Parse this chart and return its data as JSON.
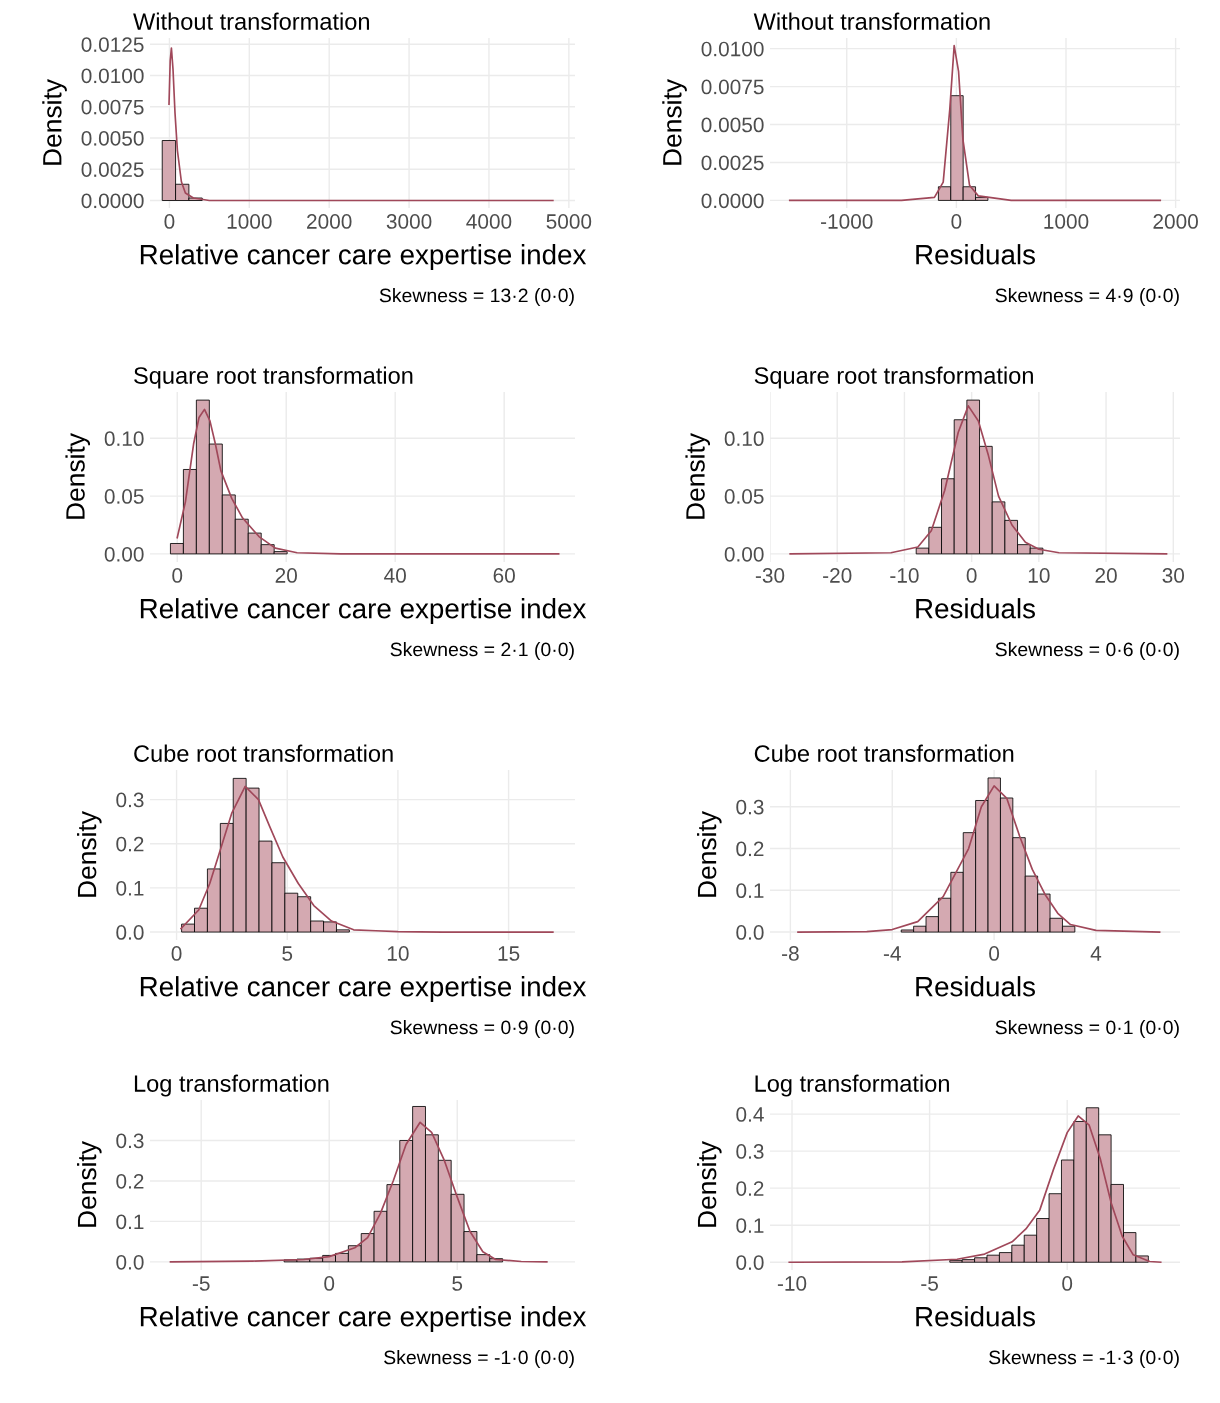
{
  "chart_data": [
    {
      "type": "histogram",
      "title": "Without transformation",
      "xlabel": "Relative cancer care expertise index",
      "ylabel": "Density",
      "annotations": [
        "Skewness = 13·2 (0·0)"
      ],
      "grid": true,
      "xlim": [
        -243,
        5077
      ],
      "xticks": [
        0,
        1000,
        2000,
        3000,
        4000,
        5000
      ],
      "ylim": [
        -0.0006,
        0.013
      ],
      "yticks": [
        {
          "value": 0,
          "label": "0.0000"
        },
        {
          "value": 0.0025,
          "label": "0.0025"
        },
        {
          "value": 0.005,
          "label": "0.0050"
        },
        {
          "value": 0.0075,
          "label": "0.0075"
        },
        {
          "value": 0.01,
          "label": "0.0100"
        },
        {
          "value": 0.0125,
          "label": "0.0125"
        }
      ],
      "series": [
        {
          "color": "#d4a9b1",
          "bins": [
            -90,
            77,
            244,
            411,
            578,
            745,
            912,
            1079,
            1246,
            1413,
            1580,
            1747,
            1914,
            2081,
            2248,
            2415,
            2582,
            2749,
            2916,
            3083,
            3250,
            3417,
            3584,
            3751,
            3918,
            4085,
            4252,
            4419,
            4586,
            4753,
            4920
          ],
          "values": [
            0.0048,
            0.0013,
            0.0002,
            0,
            0,
            0,
            0,
            0,
            0,
            0,
            0,
            0,
            0,
            0,
            0,
            0,
            0,
            0,
            0,
            0,
            0,
            0,
            0,
            0,
            0,
            0,
            0,
            0,
            0,
            0
          ]
        },
        {
          "type": "line",
          "color": "#a0485a",
          "x": [
            -5,
            10,
            25,
            45,
            70,
            100,
            150,
            200,
            300,
            500,
            1000,
            2000,
            3000,
            4000,
            4800
          ],
          "values": [
            0.0077,
            0.0112,
            0.0122,
            0.0105,
            0.007,
            0.004,
            0.0015,
            0.0006,
            0.0002,
            0,
            0,
            0,
            0,
            0,
            0
          ]
        }
      ]
    },
    {
      "type": "histogram",
      "title": "Without transformation",
      "xlabel": "Residuals",
      "ylabel": "Density",
      "annotations": [
        "Skewness = 4·9 (0·0)"
      ],
      "grid": true,
      "xlim": [
        -1700,
        2040
      ],
      "xticks": [
        -1000,
        0,
        1000,
        2000
      ],
      "ylim": [
        -0.0005,
        0.0107
      ],
      "yticks": [
        {
          "value": 0,
          "label": "0.0000"
        },
        {
          "value": 0.0025,
          "label": "0.0025"
        },
        {
          "value": 0.005,
          "label": "0.0050"
        },
        {
          "value": 0.0075,
          "label": "0.0075"
        },
        {
          "value": 0.01,
          "label": "0.0100"
        }
      ],
      "series": [
        {
          "color": "#d4a9b1",
          "bins": [
            -1520,
            -1407,
            -1294,
            -1181,
            -1068,
            -955,
            -842,
            -729,
            -616,
            -503,
            -390,
            -277,
            -164,
            -51,
            62,
            175,
            288,
            401,
            514,
            627,
            740,
            853,
            966,
            1079,
            1192,
            1305,
            1418,
            1531,
            1644,
            1757,
            1870
          ],
          "values": [
            0,
            0,
            0,
            0,
            0,
            0,
            0,
            0,
            0,
            0,
            0,
            0,
            0.0009,
            0.0069,
            0.0009,
            0.0002,
            0,
            0,
            0,
            0,
            0,
            0,
            0,
            0,
            0,
            0,
            0,
            0,
            0,
            0
          ]
        },
        {
          "type": "line",
          "color": "#a0485a",
          "x": [
            -1520,
            -500,
            -200,
            -120,
            -60,
            -20,
            20,
            60,
            120,
            200,
            500,
            1000,
            1860
          ],
          "values": [
            0,
            0,
            0.0002,
            0.0012,
            0.006,
            0.0102,
            0.0085,
            0.004,
            0.001,
            0.0003,
            0,
            0,
            0
          ]
        }
      ]
    },
    {
      "type": "histogram",
      "title": "Square root transformation",
      "xlabel": "Relative cancer care expertise index",
      "ylabel": "Density",
      "annotations": [
        "Skewness = 2·1 (0·0)"
      ],
      "grid": true,
      "xlim": [
        -5,
        73
      ],
      "xticks": [
        0,
        20,
        40,
        60
      ],
      "ylim": [
        -0.007,
        0.14
      ],
      "yticks": [
        {
          "value": 0,
          "label": "0.00"
        },
        {
          "value": 0.05,
          "label": "0.05"
        },
        {
          "value": 0.1,
          "label": "0.10"
        }
      ],
      "series": [
        {
          "color": "#d4a9b1",
          "bins": [
            -1.25,
            1.13,
            3.51,
            5.89,
            8.27,
            10.65,
            13.03,
            15.41,
            17.79,
            20.17,
            22.55,
            24.93,
            27.31,
            29.69,
            32.07,
            34.45,
            36.83,
            39.21,
            41.59,
            43.97,
            46.35,
            48.73,
            51.11,
            53.49,
            55.87,
            58.25,
            60.63,
            63.01,
            65.39,
            67.77,
            70.15
          ],
          "values": [
            0.009,
            0.073,
            0.133,
            0.095,
            0.051,
            0.03,
            0.018,
            0.008,
            0.002,
            0,
            0,
            0,
            0,
            0,
            0,
            0,
            0,
            0,
            0,
            0,
            0,
            0,
            0,
            0,
            0,
            0,
            0,
            0,
            0,
            0
          ]
        },
        {
          "type": "line",
          "color": "#a0485a",
          "x": [
            0,
            1.5,
            3,
            4,
            5,
            6,
            7,
            8,
            10,
            12,
            15,
            18,
            22,
            30,
            45,
            70
          ],
          "values": [
            0.014,
            0.045,
            0.095,
            0.118,
            0.125,
            0.115,
            0.095,
            0.072,
            0.048,
            0.031,
            0.015,
            0.005,
            0.001,
            0,
            0,
            0
          ]
        }
      ]
    },
    {
      "type": "histogram",
      "title": "Square root transformation",
      "xlabel": "Residuals",
      "ylabel": "Density",
      "annotations": [
        "Skewness = 0·6 (0·0)"
      ],
      "grid": true,
      "xlim": [
        -30,
        31
      ],
      "xticks": [
        -30,
        -20,
        -10,
        0,
        10,
        20,
        30
      ],
      "ylim": [
        -0.007,
        0.14
      ],
      "yticks": [
        {
          "value": 0,
          "label": "0.00"
        },
        {
          "value": 0.05,
          "label": "0.05"
        },
        {
          "value": 0.1,
          "label": "0.10"
        }
      ],
      "series": [
        {
          "color": "#d4a9b1",
          "bins": [
            -27.1,
            -25.215,
            -23.33,
            -21.445,
            -19.56,
            -17.675,
            -15.79,
            -13.905,
            -12.02,
            -10.135,
            -8.25,
            -6.365,
            -4.48,
            -2.595,
            -0.71,
            1.175,
            3.06,
            4.945,
            6.83,
            8.715,
            10.6,
            12.485,
            14.37,
            16.255,
            18.14,
            20.025,
            21.91,
            23.795,
            25.68,
            27.565,
            29.45
          ],
          "values": [
            0,
            0,
            0,
            0,
            0,
            0,
            0,
            0,
            0,
            0,
            0.005,
            0.023,
            0.065,
            0.116,
            0.133,
            0.093,
            0.045,
            0.029,
            0.008,
            0.005,
            0,
            0,
            0,
            0,
            0,
            0,
            0,
            0,
            0,
            0
          ]
        },
        {
          "type": "line",
          "color": "#a0485a",
          "x": [
            -27,
            -12,
            -8,
            -6,
            -4,
            -2,
            -0.5,
            1,
            2.5,
            4,
            6,
            8,
            10,
            13,
            29
          ],
          "values": [
            0,
            0.001,
            0.006,
            0.02,
            0.055,
            0.105,
            0.128,
            0.115,
            0.085,
            0.05,
            0.025,
            0.01,
            0.004,
            0.001,
            0
          ]
        }
      ]
    },
    {
      "type": "histogram",
      "title": "Cube root transformation",
      "xlabel": "Relative cancer care expertise index",
      "ylabel": "Density",
      "annotations": [
        "Skewness = 0·9 (0·0)"
      ],
      "grid": true,
      "xlim": [
        -1.2,
        18
      ],
      "xticks": [
        0,
        5,
        10,
        15
      ],
      "ylim": [
        -0.018,
        0.367
      ],
      "yticks": [
        {
          "value": 0,
          "label": "0.0"
        },
        {
          "value": 0.1,
          "label": "0.1"
        },
        {
          "value": 0.2,
          "label": "0.2"
        },
        {
          "value": 0.3,
          "label": "0.3"
        }
      ],
      "series": [
        {
          "color": "#d4a9b1",
          "bins": [
            -0.355,
            0.228,
            0.811,
            1.394,
            1.977,
            2.56,
            3.143,
            3.726,
            4.309,
            4.892,
            5.475,
            6.058,
            6.641,
            7.224,
            7.807,
            8.39,
            8.973,
            9.556,
            10.139,
            10.722,
            11.305,
            11.888,
            12.471,
            13.054,
            13.637,
            14.22,
            14.803,
            15.386,
            15.969,
            16.552,
            17.135
          ],
          "values": [
            0,
            0.018,
            0.054,
            0.143,
            0.246,
            0.348,
            0.326,
            0.206,
            0.157,
            0.088,
            0.08,
            0.025,
            0.023,
            0.005,
            0,
            0,
            0,
            0,
            0,
            0,
            0,
            0,
            0,
            0,
            0,
            0,
            0,
            0,
            0,
            0
          ]
        },
        {
          "type": "line",
          "color": "#a0485a",
          "x": [
            0.2,
            1,
            1.5,
            2,
            2.5,
            3.1,
            3.7,
            4.2,
            4.8,
            5.5,
            6.2,
            7,
            8,
            9,
            10,
            12,
            17
          ],
          "values": [
            0.008,
            0.05,
            0.11,
            0.19,
            0.27,
            0.33,
            0.3,
            0.24,
            0.17,
            0.11,
            0.06,
            0.025,
            0.005,
            0.003,
            0.001,
            0,
            0
          ]
        }
      ]
    },
    {
      "type": "histogram",
      "title": "Cube root transformation",
      "xlabel": "Residuals",
      "ylabel": "Density",
      "annotations": [
        "Skewness = 0·1 (0·0)"
      ],
      "grid": true,
      "xlim": [
        -8.8,
        7.3
      ],
      "xticks": [
        -8,
        -4,
        0,
        4
      ],
      "ylim": [
        -0.019,
        0.388
      ],
      "yticks": [
        {
          "value": 0,
          "label": "0.0"
        },
        {
          "value": 0.1,
          "label": "0.1"
        },
        {
          "value": 0.2,
          "label": "0.2"
        },
        {
          "value": 0.3,
          "label": "0.3"
        }
      ],
      "series": [
        {
          "color": "#d4a9b1",
          "bins": [
            -8.03,
            -7.543,
            -7.056,
            -6.569,
            -6.082,
            -5.595,
            -5.108,
            -4.621,
            -4.134,
            -3.647,
            -3.16,
            -2.673,
            -2.186,
            -1.699,
            -1.212,
            -0.725,
            -0.238,
            0.249,
            0.736,
            1.223,
            1.71,
            2.197,
            2.684,
            3.171,
            3.658,
            4.145,
            4.632,
            5.119,
            5.606,
            6.093,
            6.58
          ],
          "values": [
            0,
            0,
            0,
            0,
            0,
            0,
            0,
            0,
            0,
            0.005,
            0.014,
            0.037,
            0.081,
            0.143,
            0.238,
            0.315,
            0.369,
            0.321,
            0.226,
            0.134,
            0.091,
            0.033,
            0.014,
            0,
            0,
            0,
            0,
            0,
            0,
            0
          ]
        },
        {
          "type": "line",
          "color": "#a0485a",
          "x": [
            -7.7,
            -5,
            -4,
            -3,
            -2,
            -1,
            -0.5,
            0,
            0.5,
            1,
            1.5,
            2,
            2.5,
            3,
            4,
            6.5
          ],
          "values": [
            0,
            0.001,
            0.006,
            0.025,
            0.085,
            0.2,
            0.3,
            0.35,
            0.32,
            0.23,
            0.15,
            0.09,
            0.045,
            0.018,
            0.004,
            0
          ]
        }
      ]
    },
    {
      "type": "histogram",
      "title": "Log transformation",
      "xlabel": "Relative cancer care expertise index",
      "ylabel": "Density",
      "annotations": [
        "Skewness = -1·0 (0·0)"
      ],
      "grid": true,
      "xlim": [
        -7,
        9.6
      ],
      "xticks": [
        -5,
        0,
        5
      ],
      "ylim": [
        -0.02,
        0.4
      ],
      "yticks": [
        {
          "value": 0,
          "label": "0.0"
        },
        {
          "value": 0.1,
          "label": "0.1"
        },
        {
          "value": 0.2,
          "label": "0.2"
        },
        {
          "value": 0.3,
          "label": "0.3"
        }
      ],
      "series": [
        {
          "color": "#d4a9b1",
          "bins": [
            -6.28,
            -5.778,
            -5.276,
            -4.774,
            -4.272,
            -3.77,
            -3.268,
            -2.766,
            -2.264,
            -1.762,
            -1.26,
            -0.758,
            -0.256,
            0.246,
            0.748,
            1.25,
            1.752,
            2.254,
            2.756,
            3.258,
            3.76,
            4.262,
            4.764,
            5.266,
            5.768,
            6.27,
            6.772,
            7.274,
            7.776,
            8.278,
            8.78
          ],
          "values": [
            0,
            0,
            0,
            0,
            0,
            0,
            0,
            0,
            0,
            0.005,
            0.007,
            0.009,
            0.016,
            0.021,
            0.04,
            0.07,
            0.125,
            0.191,
            0.3,
            0.384,
            0.314,
            0.251,
            0.167,
            0.075,
            0.018,
            0.008,
            0,
            0,
            0,
            0
          ]
        },
        {
          "type": "line",
          "color": "#a0485a",
          "x": [
            -6.2,
            -3,
            -1,
            0,
            1,
            1.5,
            2,
            2.5,
            3,
            3.55,
            4,
            4.5,
            5,
            5.5,
            6,
            6.5,
            7.5,
            8.5
          ],
          "values": [
            0,
            0.002,
            0.006,
            0.013,
            0.035,
            0.06,
            0.12,
            0.2,
            0.29,
            0.345,
            0.32,
            0.25,
            0.16,
            0.075,
            0.025,
            0.006,
            0.001,
            0
          ]
        }
      ]
    },
    {
      "type": "histogram",
      "title": "Log transformation",
      "xlabel": "Residuals",
      "ylabel": "Density",
      "annotations": [
        "Skewness = -1·3 (0·0)"
      ],
      "grid": true,
      "xlim": [
        -10.8,
        4.1
      ],
      "xticks": [
        -10,
        -5,
        0
      ],
      "ylim": [
        -0.021,
        0.438
      ],
      "yticks": [
        {
          "value": 0,
          "label": "0.0"
        },
        {
          "value": 0.1,
          "label": "0.1"
        },
        {
          "value": 0.2,
          "label": "0.2"
        },
        {
          "value": 0.3,
          "label": "0.3"
        },
        {
          "value": 0.4,
          "label": "0.4"
        }
      ],
      "series": [
        {
          "color": "#d4a9b1",
          "bins": [
            -10.13,
            -9.679,
            -9.228,
            -8.777,
            -8.326,
            -7.875,
            -7.424,
            -6.973,
            -6.522,
            -6.071,
            -5.62,
            -5.169,
            -4.718,
            -4.267,
            -3.816,
            -3.365,
            -2.914,
            -2.463,
            -2.012,
            -1.561,
            -1.11,
            -0.659,
            -0.208,
            0.243,
            0.694,
            1.145,
            1.596,
            2.047,
            2.498,
            2.949,
            3.4
          ],
          "values": [
            0,
            0,
            0,
            0,
            0,
            0,
            0,
            0,
            0,
            0,
            0,
            0,
            0,
            0.005,
            0.007,
            0.012,
            0.019,
            0.026,
            0.046,
            0.073,
            0.118,
            0.185,
            0.276,
            0.38,
            0.417,
            0.344,
            0.21,
            0.08,
            0.017,
            0
          ]
        },
        {
          "type": "line",
          "color": "#a0485a",
          "x": [
            -10.1,
            -6,
            -4,
            -3,
            -2,
            -1.5,
            -1,
            -0.5,
            0,
            0.4,
            0.8,
            1.2,
            1.6,
            2,
            2.4,
            3,
            3.4
          ],
          "values": [
            0,
            0.001,
            0.008,
            0.022,
            0.055,
            0.09,
            0.14,
            0.25,
            0.35,
            0.395,
            0.37,
            0.28,
            0.16,
            0.07,
            0.02,
            0.002,
            0
          ]
        }
      ]
    }
  ]
}
